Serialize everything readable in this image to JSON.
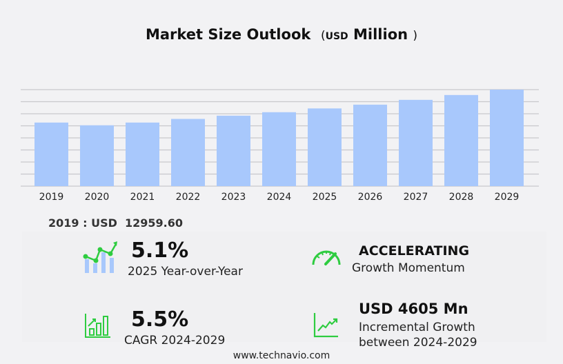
{
  "header": {
    "title": "Market Size Outlook",
    "unit_open": "(",
    "unit_currency": "USD",
    "unit_scale": "Million",
    "unit_close": ")"
  },
  "chart_data": {
    "type": "bar",
    "categories": [
      "2019",
      "2020",
      "2021",
      "2022",
      "2023",
      "2024",
      "2025",
      "2026",
      "2027",
      "2028",
      "2029"
    ],
    "values": [
      12959.6,
      12400,
      12960,
      13700,
      14360,
      15070,
      15840,
      16610,
      17590,
      18575,
      19675
    ],
    "ylim": [
      0,
      19675
    ],
    "grid": true,
    "bar_color": "#a8c8fc",
    "grid_color": "#c8c8cc"
  },
  "baseline": {
    "label": "2019 : USD  12959.60"
  },
  "stats": {
    "yoy": {
      "value": "5.1%",
      "label": "2025 Year-over-Year"
    },
    "momentum": {
      "value": "ACCELERATING",
      "label": "Growth Momentum"
    },
    "cagr": {
      "value": "5.5%",
      "label_a": "CAGR",
      "label_b": "2024-2029"
    },
    "incremental": {
      "value": "USD 4605 Mn",
      "label_1": "Incremental Growth",
      "label_2": "between 2024-2029"
    }
  },
  "colors": {
    "accent": "#2ecc40",
    "bar_light": "#a8c8fc"
  },
  "footer": {
    "url": "www.technavio.com"
  }
}
